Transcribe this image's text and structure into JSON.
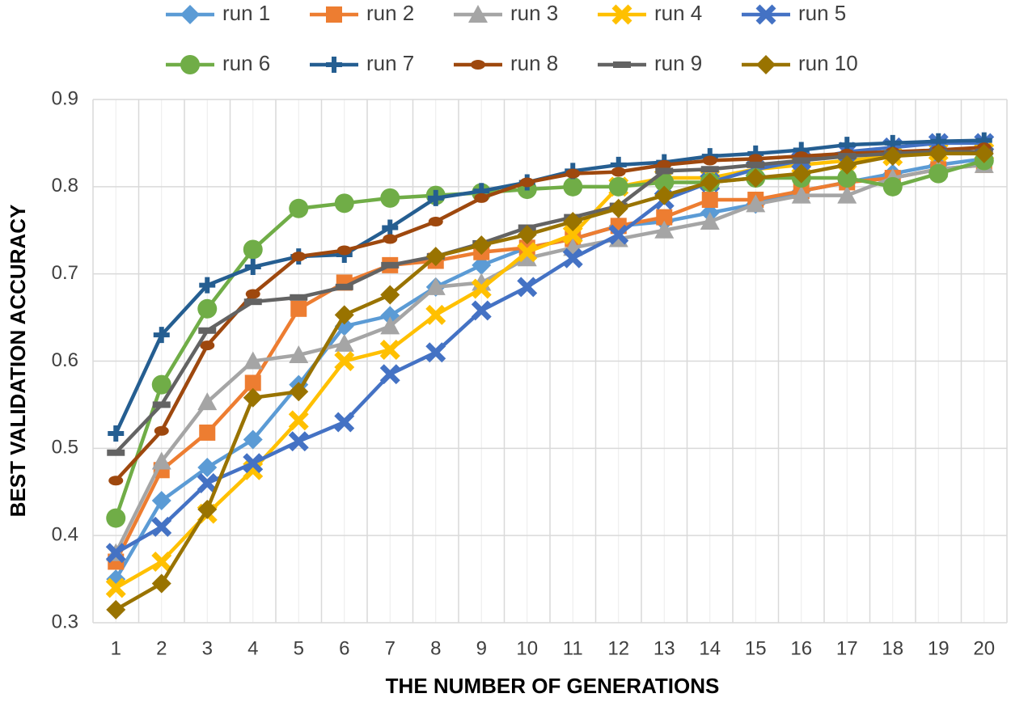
{
  "chart_data": {
    "type": "line",
    "x_label": "THE NUMBER OF GENERATIONS",
    "y_label": "BEST VALIDATION ACCURACY",
    "categories": [
      "1",
      "2",
      "3",
      "4",
      "5",
      "6",
      "7",
      "8",
      "9",
      "10",
      "11",
      "12",
      "13",
      "14",
      "15",
      "16",
      "17",
      "18",
      "19",
      "20"
    ],
    "ylim": [
      0.3,
      0.9
    ],
    "yticks": [
      0.3,
      0.4,
      0.5,
      0.6,
      0.7,
      0.8,
      0.9
    ],
    "grid": true,
    "legend": "top",
    "series": [
      {
        "name": "run 1",
        "color": "#5b9bd5",
        "marker": "diamond",
        "values": [
          0.35,
          0.44,
          0.478,
          0.51,
          0.573,
          0.64,
          0.652,
          0.685,
          0.71,
          0.73,
          0.74,
          0.755,
          0.76,
          0.77,
          0.78,
          0.795,
          0.805,
          0.815,
          0.825,
          0.832
        ]
      },
      {
        "name": "run 2",
        "color": "#ed7d31",
        "marker": "square",
        "values": [
          0.37,
          0.475,
          0.518,
          0.575,
          0.66,
          0.69,
          0.71,
          0.715,
          0.725,
          0.73,
          0.74,
          0.755,
          0.765,
          0.785,
          0.785,
          0.795,
          0.805,
          0.81,
          0.82,
          0.825
        ]
      },
      {
        "name": "run 3",
        "color": "#a5a5a5",
        "marker": "triangle",
        "values": [
          0.38,
          0.485,
          0.553,
          0.6,
          0.607,
          0.62,
          0.64,
          0.685,
          0.69,
          0.718,
          0.73,
          0.74,
          0.75,
          0.76,
          0.78,
          0.79,
          0.79,
          0.81,
          0.82,
          0.825
        ]
      },
      {
        "name": "run 4",
        "color": "#ffc000",
        "marker": "x",
        "values": [
          0.34,
          0.37,
          0.425,
          0.475,
          0.532,
          0.6,
          0.613,
          0.653,
          0.683,
          0.725,
          0.745,
          0.8,
          0.81,
          0.81,
          0.82,
          0.825,
          0.83,
          0.835,
          0.84,
          0.84
        ]
      },
      {
        "name": "run 5",
        "color": "#4472c4",
        "marker": "x",
        "values": [
          0.38,
          0.41,
          0.46,
          0.483,
          0.508,
          0.53,
          0.585,
          0.61,
          0.658,
          0.685,
          0.718,
          0.745,
          0.785,
          0.805,
          0.82,
          0.83,
          0.84,
          0.845,
          0.85,
          0.85
        ]
      },
      {
        "name": "run 6",
        "color": "#70ad47",
        "marker": "circle",
        "values": [
          0.42,
          0.573,
          0.66,
          0.728,
          0.775,
          0.781,
          0.787,
          0.79,
          0.793,
          0.797,
          0.8,
          0.8,
          0.805,
          0.805,
          0.81,
          0.81,
          0.81,
          0.8,
          0.815,
          0.83
        ]
      },
      {
        "name": "run 7",
        "color": "#255e91",
        "marker": "plus",
        "values": [
          0.517,
          0.63,
          0.687,
          0.708,
          0.72,
          0.722,
          0.753,
          0.787,
          0.795,
          0.805,
          0.818,
          0.825,
          0.828,
          0.835,
          0.838,
          0.842,
          0.848,
          0.85,
          0.852,
          0.853
        ]
      },
      {
        "name": "run 8",
        "color": "#9e480e",
        "marker": "dot",
        "values": [
          0.463,
          0.52,
          0.618,
          0.677,
          0.72,
          0.727,
          0.74,
          0.76,
          0.787,
          0.805,
          0.815,
          0.817,
          0.825,
          0.83,
          0.832,
          0.835,
          0.838,
          0.84,
          0.842,
          0.845
        ]
      },
      {
        "name": "run 9",
        "color": "#636363",
        "marker": "dash",
        "values": [
          0.495,
          0.55,
          0.635,
          0.668,
          0.673,
          0.685,
          0.71,
          0.72,
          0.735,
          0.753,
          0.765,
          0.778,
          0.818,
          0.82,
          0.825,
          0.83,
          0.835,
          0.838,
          0.84,
          0.84
        ]
      },
      {
        "name": "run 10",
        "color": "#997300",
        "marker": "diamond",
        "values": [
          0.315,
          0.345,
          0.43,
          0.558,
          0.565,
          0.653,
          0.676,
          0.72,
          0.733,
          0.745,
          0.76,
          0.775,
          0.79,
          0.805,
          0.81,
          0.815,
          0.825,
          0.835,
          0.838,
          0.838
        ]
      }
    ]
  }
}
